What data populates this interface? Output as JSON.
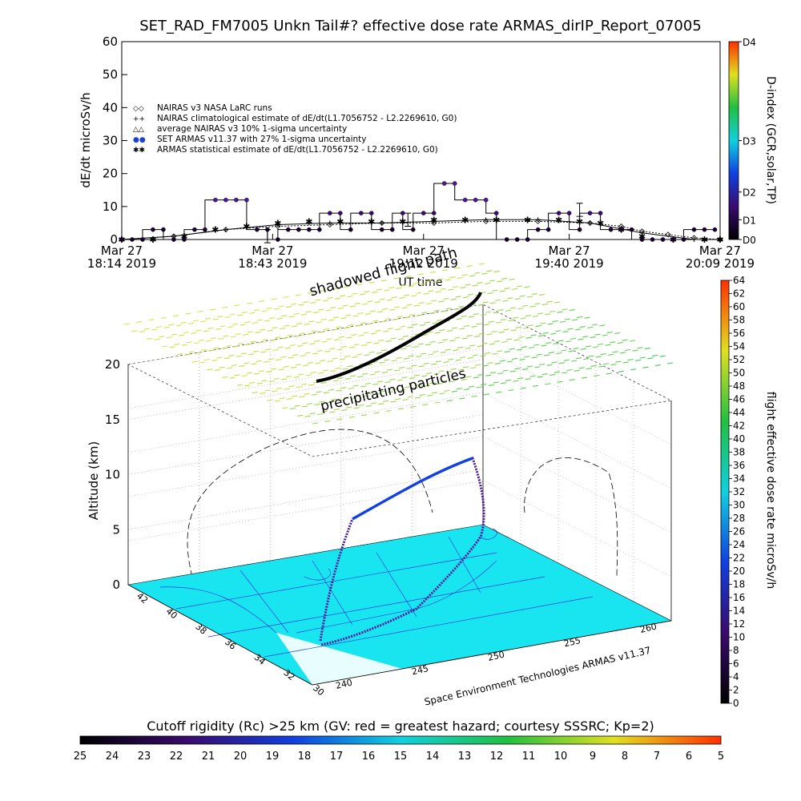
{
  "chart_data": [
    {
      "type": "line",
      "title": "SET_RAD_FM7005  Unkn Tail#? effective dose rate ARMAS_dirIP_Report_07005",
      "ylabel": "dE/dt microSv/h",
      "xlabel": "UT time",
      "ylim": [
        0,
        60
      ],
      "yticks": [
        "0",
        "10",
        "20",
        "30",
        "40",
        "50",
        "60"
      ],
      "xlim": [
        0,
        115
      ],
      "xticks": [
        {
          "t": 0,
          "line1": "Mar 27",
          "line2": "18:14 2019"
        },
        {
          "t": 29,
          "line1": "Mar 27",
          "line2": "18:43 2019"
        },
        {
          "t": 58,
          "line1": "Mar 27",
          "line2": "19:12 2019"
        },
        {
          "t": 86,
          "line1": "Mar 27",
          "line2": "19:40 2019"
        },
        {
          "t": 115,
          "line1": "Mar 27",
          "line2": "20:09 2019"
        }
      ],
      "right_axis": {
        "label": "D-index (GCR,solar,TP)",
        "ticks": [
          "D0",
          "D1",
          "D2",
          "D3",
          "D4"
        ],
        "colors": [
          "#000000",
          "#3a0a6e",
          "#1040e0",
          "#10d0e0",
          "#20c040",
          "#e0e020",
          "#ff3000"
        ]
      },
      "legend": [
        {
          "symbol": "◇◇",
          "text": "NAIRAS v3 NASA LaRC runs"
        },
        {
          "symbol": "++",
          "text": "NAIRAS climatological estimate of dE/dt(L1.7056752 - L2.2269610, G0)"
        },
        {
          "symbol": "△△",
          "text": "average NAIRAS v3 10% 1-sigma uncertainty"
        },
        {
          "symbol": "●●",
          "text": "SET ARMAS v11.37 with 27% 1-sigma uncertainty",
          "color": "#1a3fd8"
        },
        {
          "symbol": "✱✱",
          "text": "ARMAS statistical estimate of dE/dt(L1.7056752 - L2.2269610, G0)"
        }
      ],
      "series": [
        {
          "name": "SET ARMAS v11.37 with 27% 1-sigma uncertainty",
          "x": [
            0,
            2,
            4,
            6,
            8,
            10,
            12,
            14,
            16,
            18,
            20,
            22,
            24,
            26,
            28,
            30,
            32,
            34,
            36,
            38,
            40,
            42,
            44,
            46,
            48,
            50,
            52,
            54,
            56,
            58,
            60,
            62,
            64,
            66,
            68,
            70,
            72,
            74,
            76,
            78,
            80,
            82,
            84,
            86,
            88,
            90,
            92,
            94,
            96,
            98,
            100,
            102,
            104,
            106,
            108,
            110,
            112,
            114
          ],
          "y": [
            0,
            0,
            0,
            3,
            3,
            0,
            0,
            3,
            3,
            12,
            12,
            12,
            12,
            3,
            3,
            0,
            3,
            3,
            3,
            3,
            8,
            8,
            3,
            8,
            8,
            3,
            3,
            8,
            3,
            8,
            8,
            17,
            17,
            12,
            12,
            12,
            8,
            0,
            0,
            0,
            3,
            3,
            8,
            8,
            3,
            8,
            8,
            3,
            3,
            3,
            0,
            0,
            0,
            0,
            0,
            3,
            3,
            3
          ]
        },
        {
          "name": "NAIRAS climatological estimate",
          "x": [
            0,
            10,
            20,
            30,
            40,
            50,
            60,
            70,
            80,
            90,
            100,
            110,
            115
          ],
          "y": [
            0,
            1,
            3,
            4.5,
            5,
            5,
            5.5,
            6,
            6,
            5,
            2,
            0,
            0
          ]
        },
        {
          "name": "ARMAS statistical estimate",
          "x": [
            0,
            6,
            12,
            18,
            24,
            30,
            36,
            42,
            48,
            54,
            60,
            66,
            72,
            78,
            84,
            88,
            92,
            96,
            100,
            106,
            112,
            115
          ],
          "y": [
            0,
            0,
            1,
            3,
            4,
            5,
            5.5,
            5.5,
            5.5,
            5.5,
            6,
            6,
            6,
            6,
            6,
            5.5,
            5,
            3,
            1,
            0,
            0,
            0
          ]
        },
        {
          "name": "NAIRAS v3 NASA LaRC runs",
          "x": [
            0,
            10,
            20,
            30,
            40,
            50,
            60,
            70,
            80,
            90,
            96,
            100,
            105,
            110,
            115
          ],
          "y": [
            0,
            1,
            3,
            4,
            4.5,
            5,
            5,
            5.5,
            5.5,
            5,
            4,
            2.5,
            1.5,
            0.5,
            0
          ]
        }
      ],
      "error_bars": [
        {
          "x": 28,
          "y": 1,
          "err": 2
        },
        {
          "x": 55,
          "y": 6,
          "err": 2
        },
        {
          "x": 88,
          "y": 9,
          "err": 2
        }
      ]
    },
    {
      "type": "3d-surface",
      "annotations": [
        "shadowed flight path",
        "precipitating particles",
        "Space Environment Technologies ARMAS v11.37"
      ],
      "zlabel": "Altitude (km)",
      "zticks": [
        "0",
        "5",
        "10",
        "15",
        "20"
      ],
      "lat_ticks": [
        "42",
        "40",
        "38",
        "36",
        "34",
        "32",
        "30"
      ],
      "lon_ticks": [
        "240",
        "245",
        "250",
        "255",
        "260"
      ],
      "right_colorbar": {
        "label": "flight effective dose rate microSv/h",
        "ticks": [
          "0",
          "2",
          "4",
          "6",
          "8",
          "10",
          "12",
          "14",
          "16",
          "18",
          "20",
          "22",
          "24",
          "26",
          "28",
          "30",
          "32",
          "34",
          "36",
          "38",
          "40",
          "42",
          "44",
          "46",
          "48",
          "50",
          "52",
          "54",
          "56",
          "58",
          "60",
          "62",
          "64"
        ],
        "colors": [
          "#000000",
          "#3a0a6e",
          "#1040e0",
          "#10d0e0",
          "#20c040",
          "#e0e020",
          "#ff3000"
        ]
      },
      "flight_path": {
        "altitude_km": [
          0,
          3,
          5,
          6,
          8,
          10,
          11,
          11.8,
          10,
          6,
          4,
          2,
          0
        ],
        "shadow_altitude_km": 20
      }
    }
  ],
  "bottom_colorbar": {
    "title": "Cutoff rigidity (Rc) >25 km (GV: red = greatest hazard; courtesy SSSRC; Kp=2)",
    "ticks": [
      "25",
      "24",
      "23",
      "22",
      "21",
      "20",
      "19",
      "18",
      "17",
      "16",
      "15",
      "14",
      "13",
      "12",
      "11",
      "10",
      "9",
      "8",
      "7",
      "6",
      "5"
    ],
    "colors": [
      "#000000",
      "#3a0a6e",
      "#1040e0",
      "#10d0e0",
      "#20c040",
      "#e0e020",
      "#ff3000"
    ]
  }
}
